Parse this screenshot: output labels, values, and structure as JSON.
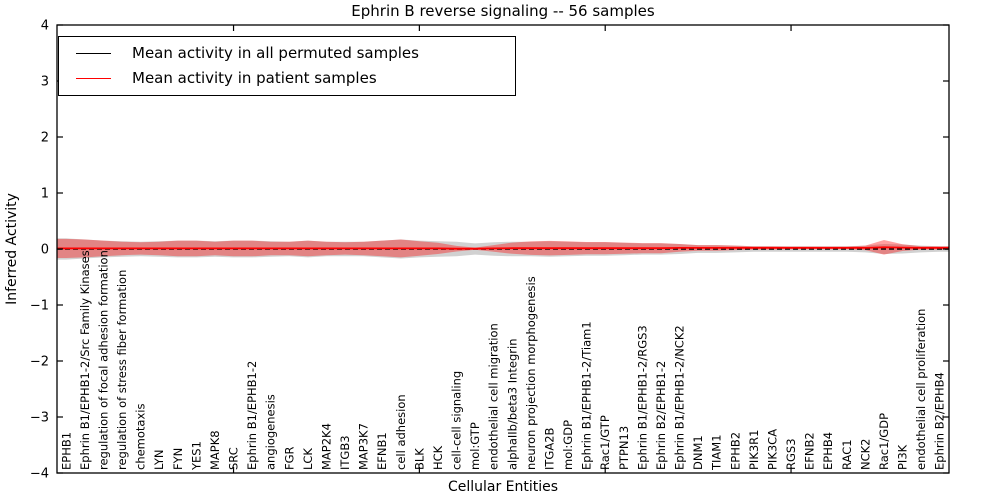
{
  "chart_data": {
    "type": "line",
    "title": "Ephrin B reverse signaling -- 56 samples",
    "xlabel": "Cellular Entities",
    "ylabel": "Inferred Activity",
    "ylim": [
      -4,
      4
    ],
    "ytick_values": [
      4,
      3,
      2,
      1,
      0,
      -1,
      -2,
      -3,
      -4
    ],
    "ytick_labels": [
      "4",
      "3",
      "2",
      "1",
      "0",
      "−1",
      "−2",
      "−3",
      "−4"
    ],
    "xtick_major_indices": [
      9,
      19,
      29,
      39
    ],
    "grid": false,
    "legend_position": "upper left",
    "categories": [
      "EPHB1",
      "Ephrin B1/EPHB1-2/Src Family Kinases",
      "regulation of focal adhesion formation",
      "regulation of stress fiber formation",
      "chemotaxis",
      "LYN",
      "FYN",
      "YES1",
      "MAPK8",
      "SRC",
      "Ephrin B1/EPHB1-2",
      "angiogenesis",
      "FGR",
      "LCK",
      "MAP2K4",
      "ITGB3",
      "MAP3K7",
      "EFNB1",
      "cell adhesion",
      "BLK",
      "HCK",
      "cell-cell signaling",
      "mol:GTP",
      "endothelial cell migration",
      "alphaIIb/beta3 Integrin",
      "neuron projection morphogenesis",
      "ITGA2B",
      "mol:GDP",
      "Ephrin B1/EPHB1-2/Tiam1",
      "Rac1/GTP",
      "PTPN13",
      "Ephrin B1/EPHB1-2/RGS3",
      "Ephrin B2/EPHB1-2",
      "Ephrin B1/EPHB1-2/NCK2",
      "DNM1",
      "TIAM1",
      "EPHB2",
      "PIK3R1",
      "PIK3CA",
      "RGS3",
      "EFNB2",
      "EPHB4",
      "RAC1",
      "NCK2",
      "Rac1/GDP",
      "PI3K",
      "endothelial cell proliferation",
      "Ephrin B2/EPHB4"
    ],
    "series": [
      {
        "name": "Mean activity in all permuted samples",
        "color": "#000000",
        "style": "dashed",
        "band_color": "#666666",
        "band_opacity": 0.3,
        "values": [
          0,
          0,
          0,
          0,
          0,
          0,
          0,
          0,
          0,
          0,
          0,
          0,
          0,
          0,
          0,
          0,
          0,
          0,
          0,
          0,
          0,
          0,
          0,
          0,
          0,
          0,
          0,
          0,
          0,
          0,
          0,
          0,
          0,
          0,
          0,
          0,
          0,
          0,
          0,
          0,
          0,
          0,
          0,
          0,
          0,
          0,
          0,
          0
        ],
        "band": [
          0.19,
          0.17,
          0.15,
          0.14,
          0.13,
          0.14,
          0.15,
          0.15,
          0.14,
          0.15,
          0.15,
          0.14,
          0.13,
          0.15,
          0.13,
          0.13,
          0.13,
          0.15,
          0.17,
          0.15,
          0.14,
          0.13,
          0.1,
          0.12,
          0.13,
          0.13,
          0.14,
          0.13,
          0.12,
          0.12,
          0.11,
          0.1,
          0.1,
          0.09,
          0.07,
          0.07,
          0.06,
          0.05,
          0.05,
          0.05,
          0.05,
          0.05,
          0.05,
          0.06,
          0.09,
          0.08,
          0.06,
          0.05
        ]
      },
      {
        "name": "Mean activity in patient samples",
        "color": "#ff0000",
        "style": "solid",
        "band_color": "#ff0000",
        "band_opacity": 0.37,
        "values": [
          0.01,
          0.01,
          0.01,
          0.01,
          0.01,
          0.01,
          0.01,
          0.01,
          0.01,
          0.01,
          0.01,
          0.01,
          0.01,
          0.01,
          0.01,
          0.01,
          0.01,
          0.01,
          0.01,
          0.01,
          0.01,
          0.005,
          0.005,
          0.01,
          0.015,
          0.015,
          0.015,
          0.015,
          0.015,
          0.015,
          0.015,
          0.015,
          0.015,
          0.02,
          0.02,
          0.02,
          0.02,
          0.02,
          0.02,
          0.02,
          0.02,
          0.02,
          0.02,
          0.02,
          0.03,
          0.025,
          0.02,
          0.02
        ],
        "band": [
          0.17,
          0.16,
          0.14,
          0.12,
          0.11,
          0.12,
          0.14,
          0.14,
          0.12,
          0.14,
          0.14,
          0.12,
          0.12,
          0.14,
          0.12,
          0.11,
          0.12,
          0.14,
          0.16,
          0.13,
          0.1,
          0.05,
          0.02,
          0.06,
          0.1,
          0.12,
          0.13,
          0.12,
          0.11,
          0.11,
          0.1,
          0.09,
          0.09,
          0.07,
          0.05,
          0.05,
          0.04,
          0.03,
          0.03,
          0.025,
          0.025,
          0.025,
          0.025,
          0.04,
          0.13,
          0.06,
          0.03,
          0.03
        ]
      }
    ]
  },
  "legend": {
    "items": [
      {
        "label": "Mean activity in all permuted samples",
        "color": "#000000"
      },
      {
        "label": "Mean activity in patient samples",
        "color": "#ff0000"
      }
    ]
  },
  "layout_colors": {
    "spine": "#000000",
    "background": "#ffffff"
  }
}
